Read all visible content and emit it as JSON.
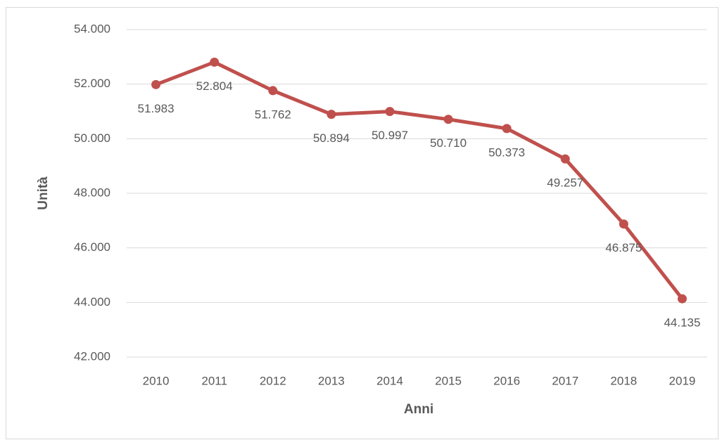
{
  "chart_data": {
    "type": "line",
    "x_label": "Anni",
    "y_label": "Unità",
    "categories": [
      "2010",
      "2011",
      "2012",
      "2013",
      "2014",
      "2015",
      "2016",
      "2017",
      "2018",
      "2019"
    ],
    "series": [
      {
        "color": "#c0504d",
        "values": [
          51983,
          52804,
          51762,
          50894,
          50997,
          50710,
          50373,
          49257,
          46875,
          44135
        ],
        "value_labels": [
          "51.983",
          "52.804",
          "51.762",
          "50.894",
          "50.997",
          "50.710",
          "50.373",
          "49.257",
          "46.875",
          "44.135"
        ]
      }
    ],
    "ylim": [
      42000,
      54000
    ],
    "yticks": [
      {
        "value": 42000,
        "label": "42.000"
      },
      {
        "value": 44000,
        "label": "44.000"
      },
      {
        "value": 46000,
        "label": "46.000"
      },
      {
        "value": 48000,
        "label": "48.000"
      },
      {
        "value": 50000,
        "label": "50.000"
      },
      {
        "value": 52000,
        "label": "52.000"
      },
      {
        "value": 54000,
        "label": "54.000"
      }
    ],
    "grid": true
  }
}
